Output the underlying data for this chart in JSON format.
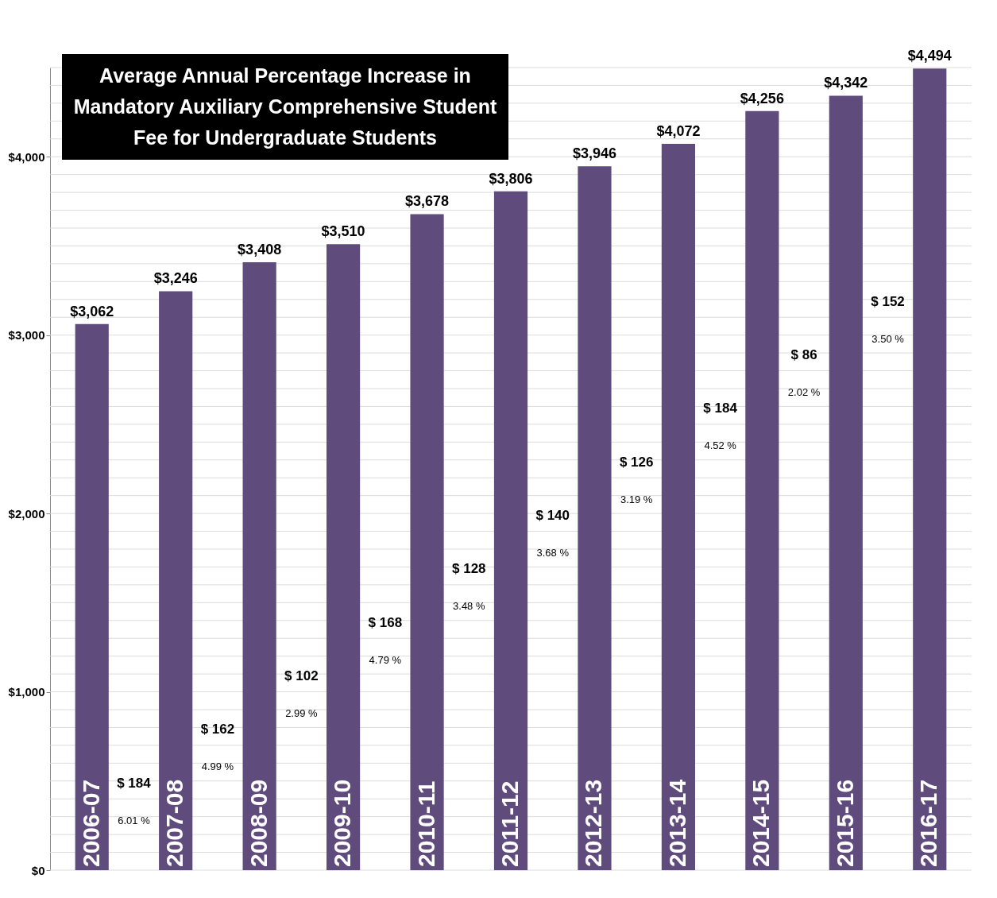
{
  "chart_data": {
    "type": "bar",
    "title": "Average Annual Percentage Increase in Mandatory Auxiliary Comprehensive Student Fee for Undergraduate Students",
    "categories": [
      "2006-07",
      "2007-08",
      "2008-09",
      "2009-10",
      "2010-11",
      "2011-12",
      "2012-13",
      "2013-14",
      "2014-15",
      "2015-16",
      "2016-17"
    ],
    "values": [
      3062,
      3246,
      3408,
      3510,
      3678,
      3806,
      3946,
      4072,
      4256,
      4342,
      4494
    ],
    "color": "#5f4b7c",
    "value_labels": [
      "$3,062",
      "$3,246",
      "$3,408",
      "$3,510",
      "$3,678",
      "$3,806",
      "$3,946",
      "$4,072",
      "$4,256",
      "$4,342",
      "$4,494"
    ],
    "ylim": [
      0,
      4500
    ],
    "yticks": [
      {
        "value": 0,
        "label": "$0"
      },
      {
        "value": 100,
        "label": null
      },
      {
        "value": 200,
        "label": null
      },
      {
        "value": 300,
        "label": null
      },
      {
        "value": 400,
        "label": null
      },
      {
        "value": 500,
        "label": null
      },
      {
        "value": 600,
        "label": null
      },
      {
        "value": 700,
        "label": null
      },
      {
        "value": 800,
        "label": null
      },
      {
        "value": 900,
        "label": null
      },
      {
        "value": 1000,
        "label": "$1,000"
      },
      {
        "value": 1100,
        "label": null
      },
      {
        "value": 1200,
        "label": null
      },
      {
        "value": 1300,
        "label": null
      },
      {
        "value": 1400,
        "label": null
      },
      {
        "value": 1500,
        "label": null
      },
      {
        "value": 1600,
        "label": null
      },
      {
        "value": 1700,
        "label": null
      },
      {
        "value": 1800,
        "label": null
      },
      {
        "value": 1900,
        "label": null
      },
      {
        "value": 2000,
        "label": "$2,000"
      },
      {
        "value": 2100,
        "label": null
      },
      {
        "value": 2200,
        "label": null
      },
      {
        "value": 2300,
        "label": null
      },
      {
        "value": 2400,
        "label": null
      },
      {
        "value": 2500,
        "label": null
      },
      {
        "value": 2600,
        "label": null
      },
      {
        "value": 2700,
        "label": null
      },
      {
        "value": 2800,
        "label": null
      },
      {
        "value": 2900,
        "label": null
      },
      {
        "value": 3000,
        "label": "$3,000"
      },
      {
        "value": 3100,
        "label": null
      },
      {
        "value": 3200,
        "label": null
      },
      {
        "value": 3300,
        "label": null
      },
      {
        "value": 3400,
        "label": null
      },
      {
        "value": 3500,
        "label": null
      },
      {
        "value": 3600,
        "label": null
      },
      {
        "value": 3700,
        "label": null
      },
      {
        "value": 3800,
        "label": null
      },
      {
        "value": 3900,
        "label": null
      },
      {
        "value": 4000,
        "label": "$4,000"
      },
      {
        "value": 4100,
        "label": null
      },
      {
        "value": 4200,
        "label": null
      },
      {
        "value": 4300,
        "label": null
      },
      {
        "value": 4400,
        "label": null
      },
      {
        "value": 4500,
        "label": null
      }
    ],
    "grid": "y",
    "annotations": [
      "$ 184",
      "6.01 %",
      "$ 162",
      "4.99 %",
      "$ 102",
      "2.99 %",
      "$ 168",
      "4.79 %",
      "$ 128",
      "3.48 %",
      "$ 140",
      "3.68 %",
      "$ 126",
      "3.19 %",
      "$ 184",
      "4.52 %",
      "$ 86",
      "2.02 %",
      "$ 152",
      "3.50 %"
    ]
  }
}
